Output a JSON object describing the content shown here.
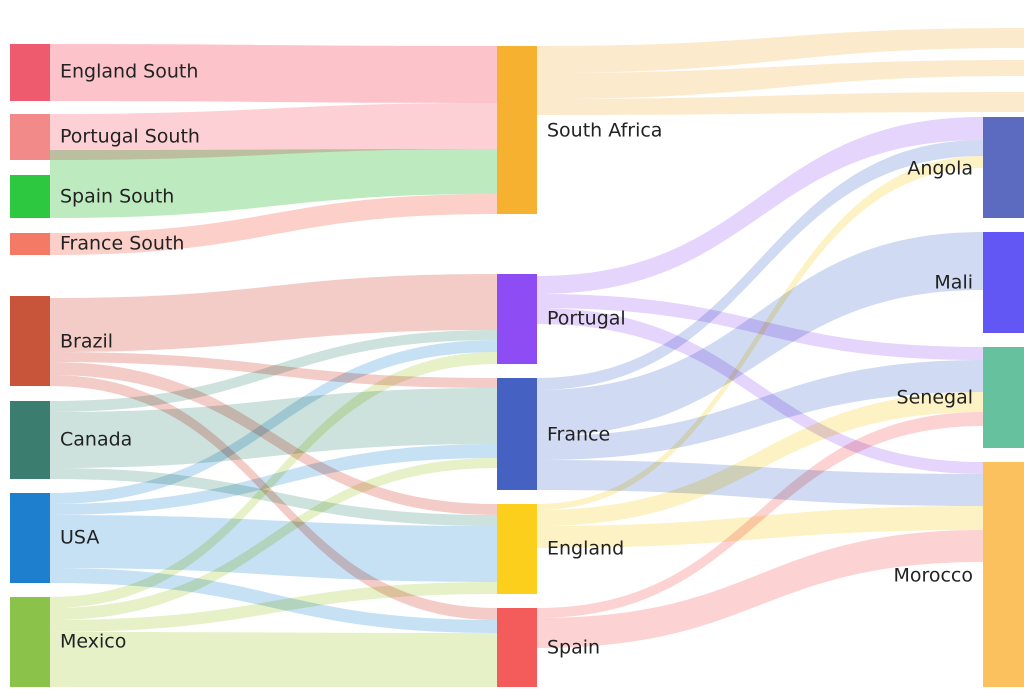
{
  "sankey": {
    "nodes": [
      {
        "id": "england_south",
        "label": "England South",
        "color": "#ef5b6e"
      },
      {
        "id": "portugal_south",
        "label": "Portugal South",
        "color": "#f28a8a"
      },
      {
        "id": "spain_south",
        "label": "Spain South",
        "color": "#2ec840"
      },
      {
        "id": "france_south",
        "label": "France South",
        "color": "#f47a66"
      },
      {
        "id": "brazil",
        "label": "Brazil",
        "color": "#c8543a"
      },
      {
        "id": "canada",
        "label": "Canada",
        "color": "#3b7d6e"
      },
      {
        "id": "usa",
        "label": "USA",
        "color": "#1f7fcf"
      },
      {
        "id": "mexico",
        "label": "Mexico",
        "color": "#8bc34a"
      },
      {
        "id": "south_africa",
        "label": "South Africa",
        "color": "#f6b130"
      },
      {
        "id": "portugal",
        "label": "Portugal",
        "color": "#8e4cf5"
      },
      {
        "id": "france",
        "label": "France",
        "color": "#4562c2"
      },
      {
        "id": "england",
        "label": "England",
        "color": "#fbcf1b"
      },
      {
        "id": "spain",
        "label": "Spain",
        "color": "#f45b5b"
      },
      {
        "id": "angola",
        "label": "Angola",
        "color": "#5c6bc0"
      },
      {
        "id": "mali",
        "label": "Mali",
        "color": "#6256f5"
      },
      {
        "id": "senegal",
        "label": "Senegal",
        "color": "#66c19e"
      },
      {
        "id": "morocco",
        "label": "Morocco",
        "color": "#fbc15e"
      }
    ],
    "links": [
      {
        "source": "england_south",
        "target": "south_africa",
        "color": "#fbb8c2"
      },
      {
        "source": "portugal_south",
        "target": "south_africa",
        "color": "#fcc8cc"
      },
      {
        "source": "spain_south",
        "target": "south_africa",
        "color": "#b2e6b4"
      },
      {
        "source": "france_south",
        "target": "south_africa",
        "color": "#fcc8c0"
      },
      {
        "source": "brazil",
        "target": "portugal",
        "color": "#f2c3bd"
      },
      {
        "source": "brazil",
        "target": "france",
        "color": "#f2c3bd"
      },
      {
        "source": "brazil",
        "target": "england",
        "color": "#f2c3bd"
      },
      {
        "source": "brazil",
        "target": "spain",
        "color": "#f2c3bd"
      },
      {
        "source": "canada",
        "target": "portugal",
        "color": "#c4ddd6"
      },
      {
        "source": "canada",
        "target": "france",
        "color": "#c4ddd6"
      },
      {
        "source": "canada",
        "target": "england",
        "color": "#c4ddd6"
      },
      {
        "source": "usa",
        "target": "portugal",
        "color": "#bcdcf2"
      },
      {
        "source": "usa",
        "target": "france",
        "color": "#bcdcf2"
      },
      {
        "source": "usa",
        "target": "england",
        "color": "#bcdcf2"
      },
      {
        "source": "usa",
        "target": "spain",
        "color": "#bcdcf2"
      },
      {
        "source": "mexico",
        "target": "portugal",
        "color": "#e2eebe"
      },
      {
        "source": "mexico",
        "target": "france",
        "color": "#e2eebe"
      },
      {
        "source": "mexico",
        "target": "england",
        "color": "#e2eebe"
      },
      {
        "source": "mexico",
        "target": "spain",
        "color": "#e2eebe"
      },
      {
        "source": "south_africa",
        "target": "",
        "color": "#fce6c4"
      },
      {
        "source": "south_africa",
        "target": "",
        "color": "#fce6c4"
      },
      {
        "source": "south_africa",
        "target": "",
        "color": "#fce6c4"
      },
      {
        "source": "portugal",
        "target": "angola",
        "color": "#e0ccfb"
      },
      {
        "source": "portugal",
        "target": "senegal",
        "color": "#e0ccfb"
      },
      {
        "source": "portugal",
        "target": "morocco",
        "color": "#e0ccfb"
      },
      {
        "source": "france",
        "target": "angola",
        "color": "#c8d3f0"
      },
      {
        "source": "france",
        "target": "mali",
        "color": "#c8d3f0"
      },
      {
        "source": "france",
        "target": "senegal",
        "color": "#c8d3f0"
      },
      {
        "source": "france",
        "target": "morocco",
        "color": "#c8d3f0"
      },
      {
        "source": "england",
        "target": "angola",
        "color": "#fbf0b8"
      },
      {
        "source": "england",
        "target": "senegal",
        "color": "#fbf0b8"
      },
      {
        "source": "england",
        "target": "morocco",
        "color": "#fbf0b8"
      },
      {
        "source": "spain",
        "target": "senegal",
        "color": "#fccaca"
      },
      {
        "source": "spain",
        "target": "morocco",
        "color": "#fccaca"
      }
    ]
  }
}
